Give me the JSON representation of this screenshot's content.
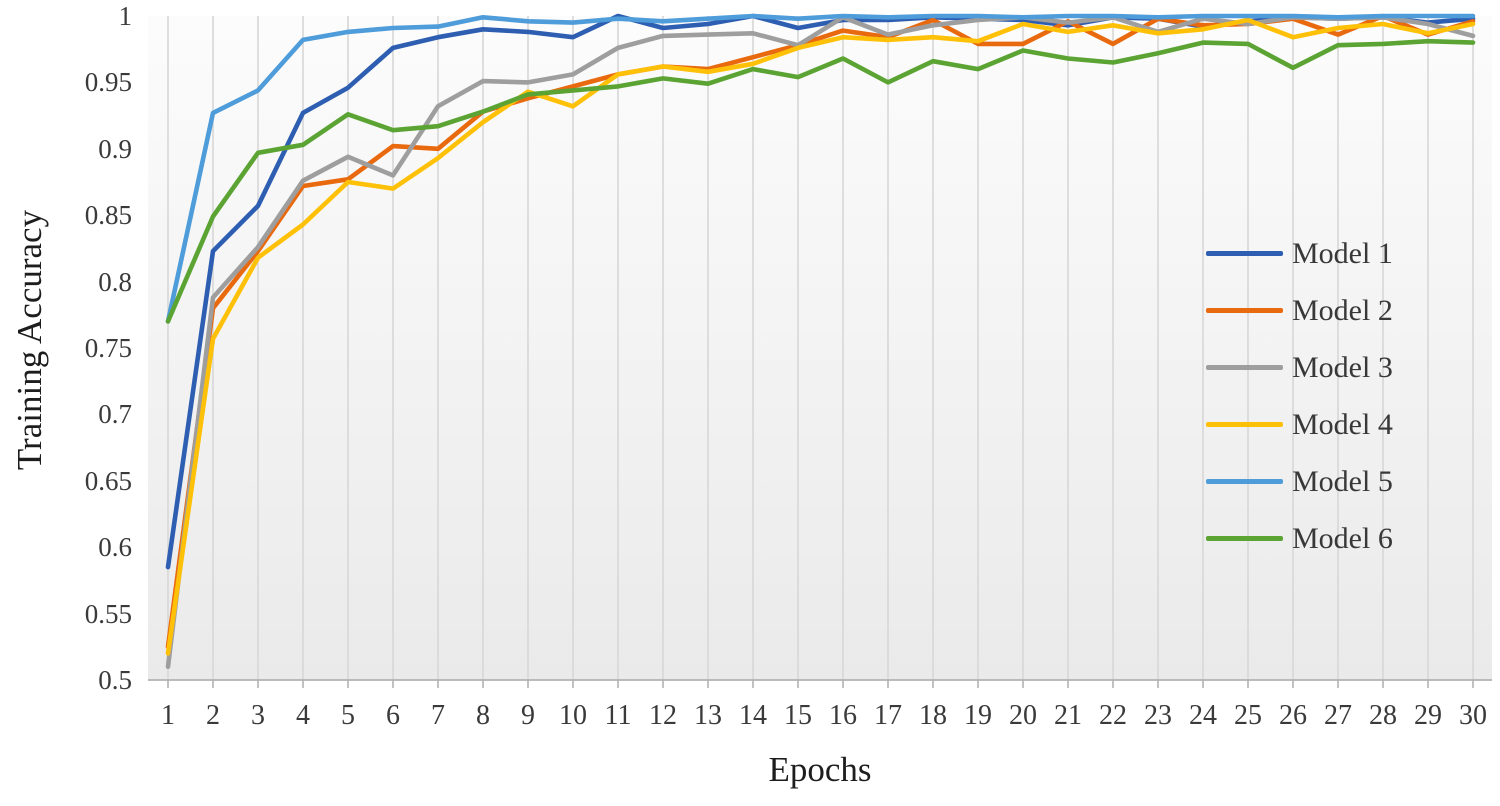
{
  "chart_data": {
    "type": "line",
    "title": "",
    "xlabel": "Epochs",
    "ylabel": "Training Accuracy",
    "ylim": [
      0.5,
      1.0
    ],
    "ytick_labels": [
      "1",
      "0.95",
      "0.9",
      "0.85",
      "0.8",
      "0.75",
      "0.7",
      "0.65",
      "0.6",
      "0.55",
      "0.5"
    ],
    "grid": "vertical-only",
    "legend_position": "inside-right",
    "x": [
      1,
      2,
      3,
      4,
      5,
      6,
      7,
      8,
      9,
      10,
      11,
      12,
      13,
      14,
      15,
      16,
      17,
      18,
      19,
      20,
      21,
      22,
      23,
      24,
      25,
      26,
      27,
      28,
      29,
      30
    ],
    "series": [
      {
        "name": "Model 1",
        "color": "#2E5EB1",
        "values": [
          0.585,
          0.823,
          0.857,
          0.927,
          0.946,
          0.976,
          0.984,
          0.99,
          0.988,
          0.984,
          1.0,
          0.991,
          0.994,
          1.0,
          0.991,
          0.997,
          0.997,
          0.999,
          0.998,
          0.997,
          0.993,
          0.999,
          0.998,
          0.992,
          0.996,
          0.999,
          0.998,
          0.999,
          0.995,
          0.998
        ]
      },
      {
        "name": "Model 2",
        "color": "#E9690F",
        "values": [
          0.525,
          0.78,
          0.823,
          0.872,
          0.877,
          0.902,
          0.9,
          0.928,
          0.938,
          0.947,
          0.956,
          0.962,
          0.96,
          0.969,
          0.978,
          0.989,
          0.984,
          0.997,
          0.979,
          0.979,
          0.996,
          0.979,
          0.998,
          0.993,
          0.994,
          0.998,
          0.986,
          1.0,
          0.986,
          0.996
        ]
      },
      {
        "name": "Model 3",
        "color": "#9E9E9E",
        "values": [
          0.51,
          0.788,
          0.826,
          0.876,
          0.894,
          0.88,
          0.932,
          0.951,
          0.95,
          0.956,
          0.976,
          0.985,
          0.986,
          0.987,
          0.978,
          0.999,
          0.986,
          0.993,
          0.997,
          0.999,
          0.995,
          0.999,
          0.988,
          0.998,
          0.994,
          0.999,
          0.998,
          0.999,
          0.994,
          0.985
        ]
      },
      {
        "name": "Model 4",
        "color": "#FFC008",
        "values": [
          0.52,
          0.757,
          0.818,
          0.843,
          0.875,
          0.87,
          0.893,
          0.92,
          0.943,
          0.932,
          0.956,
          0.962,
          0.958,
          0.964,
          0.976,
          0.984,
          0.982,
          0.984,
          0.981,
          0.994,
          0.988,
          0.993,
          0.987,
          0.99,
          0.997,
          0.984,
          0.991,
          0.994,
          0.987,
          0.994
        ]
      },
      {
        "name": "Model 5",
        "color": "#4E9CD9",
        "values": [
          0.77,
          0.927,
          0.944,
          0.982,
          0.988,
          0.991,
          0.992,
          0.999,
          0.996,
          0.995,
          0.998,
          0.996,
          0.998,
          1.0,
          0.998,
          1.0,
          0.999,
          1.0,
          1.0,
          0.999,
          1.0,
          1.0,
          0.999,
          1.0,
          1.0,
          1.0,
          0.999,
          1.0,
          1.0,
          1.0
        ]
      },
      {
        "name": "Model 6",
        "color": "#5BA434",
        "values": [
          0.77,
          0.849,
          0.897,
          0.903,
          0.926,
          0.914,
          0.917,
          0.928,
          0.941,
          0.944,
          0.947,
          0.953,
          0.949,
          0.96,
          0.954,
          0.968,
          0.95,
          0.966,
          0.96,
          0.974,
          0.968,
          0.965,
          0.972,
          0.98,
          0.979,
          0.961,
          0.978,
          0.979,
          0.981,
          0.98
        ]
      }
    ]
  },
  "colors": {
    "gridline": "#d7d7d7",
    "axis_line": "#b3b3b3",
    "tick_text": "#3a3a3a",
    "title_text": "#1d1d1d",
    "plot_bg_top": "#fcfcfc",
    "plot_bg_bottom": "#eaeaea"
  }
}
